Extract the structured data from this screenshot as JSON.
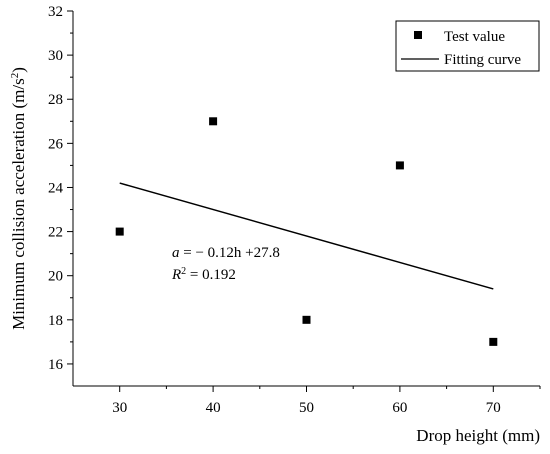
{
  "chart_data": {
    "type": "scatter",
    "xlabel": "Drop height (mm)",
    "ylabel_prefix": "Minimum collision acceleration (m/s",
    "ylabel_sup": "2",
    "ylabel_suffix": ")",
    "xlim": [
      25,
      75
    ],
    "ylim": [
      15,
      32
    ],
    "x_ticks": [
      30,
      40,
      50,
      60,
      70
    ],
    "y_ticks": [
      16,
      18,
      20,
      22,
      24,
      26,
      28,
      30,
      32
    ],
    "grid": false,
    "legend_position": "top-right",
    "series": [
      {
        "name": "Test value",
        "kind": "scatter",
        "marker": "square",
        "color": "#000000",
        "x": [
          30,
          40,
          50,
          60,
          70
        ],
        "y": [
          22,
          27,
          18,
          25,
          17
        ]
      },
      {
        "name": "Fitting curve",
        "kind": "line",
        "color": "#000000",
        "x": [
          30,
          70
        ],
        "y": [
          24.2,
          19.4
        ]
      }
    ],
    "annotations": {
      "equation": {
        "var": "a",
        "rest": " = − 0.12h +27.8"
      },
      "r_squared": {
        "var": "R",
        "sup": "2",
        "rest": " = 0.192"
      }
    }
  }
}
